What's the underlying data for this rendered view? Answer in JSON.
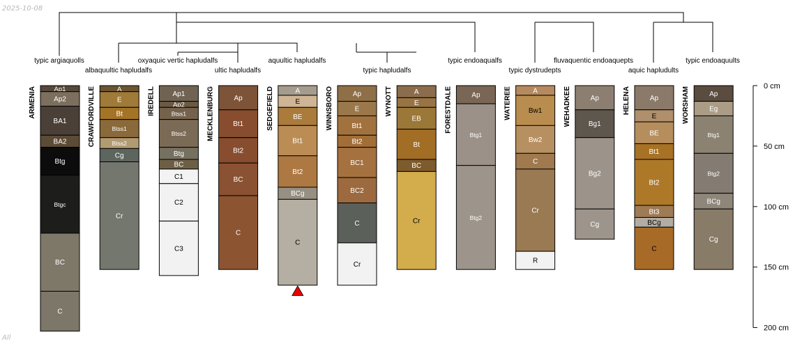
{
  "corner_labels": {
    "date": "2025-10-08",
    "group": "All"
  },
  "depth_axis": {
    "max_depth_cm": 200,
    "ticks": [
      {
        "depth": 0,
        "label": "0 cm"
      },
      {
        "depth": 50,
        "label": "50 cm"
      },
      {
        "depth": 100,
        "label": "100 cm"
      },
      {
        "depth": 150,
        "label": "150 cm"
      },
      {
        "depth": 200,
        "label": "200 cm"
      }
    ]
  },
  "tree_labels": [
    "typic argiaquolls",
    "albaquultic hapludalfs",
    "oxyaquic vertic hapludalfs",
    "ultic hapludalfs",
    "aquultic hapludalfs",
    "typic hapludalfs",
    "typic endoaqualfs",
    "typic dystrudepts",
    "fluvaquentic endoaquepts",
    "aquic hapludults",
    "typic endoaquults"
  ],
  "profiles": [
    {
      "name": "ARMENIA",
      "horizons": [
        {
          "n": "Ap1",
          "t": 0,
          "b": 5,
          "c": "#56483a",
          "tc": "#ffffff"
        },
        {
          "n": "Ap2",
          "t": 5,
          "b": 17,
          "c": "#7c6f5e",
          "tc": "#ffffff"
        },
        {
          "n": "BA1",
          "t": 17,
          "b": 41,
          "c": "#4a4038",
          "tc": "#ffffff"
        },
        {
          "n": "BA2",
          "t": 41,
          "b": 51,
          "c": "#5c4b35",
          "tc": "#ffffff"
        },
        {
          "n": "Btg",
          "t": 51,
          "b": 74,
          "c": "#0c0c0c",
          "tc": "#ffffff"
        },
        {
          "n": "Btgc",
          "t": 74,
          "b": 122,
          "c": "#1d1e1c",
          "tc": "#ffffff"
        },
        {
          "n": "BC",
          "t": 122,
          "b": 170,
          "c": "#7e7869",
          "tc": "#ffffff"
        },
        {
          "n": "C",
          "t": 170,
          "b": 203,
          "c": "#7c7768",
          "tc": "#ffffff"
        }
      ]
    },
    {
      "name": "CRAWFORDVILLE",
      "horizons": [
        {
          "n": "A",
          "t": 0,
          "b": 5,
          "c": "#6b5532",
          "tc": "#ffffff"
        },
        {
          "n": "E",
          "t": 5,
          "b": 18,
          "c": "#9f7a38",
          "tc": "#ffffff"
        },
        {
          "n": "Bt",
          "t": 18,
          "b": 28,
          "c": "#a47426",
          "tc": "#ffffff"
        },
        {
          "n": "Btss1",
          "t": 28,
          "b": 43,
          "c": "#8a6a3a",
          "tc": "#ffffff"
        },
        {
          "n": "Btss2",
          "t": 43,
          "b": 52,
          "c": "#b29a72",
          "tc": "#ffffff"
        },
        {
          "n": "Cg",
          "t": 52,
          "b": 63,
          "c": "#5d655f",
          "tc": "#ffffff"
        },
        {
          "n": "Cr",
          "t": 63,
          "b": 152,
          "c": "#74776e",
          "tc": "#ffffff"
        }
      ]
    },
    {
      "name": "IREDELL",
      "horizons": [
        {
          "n": "Ap1",
          "t": 0,
          "b": 13,
          "c": "#716353",
          "tc": "#ffffff"
        },
        {
          "n": "Ap2",
          "t": 13,
          "b": 18,
          "c": "#6b5a44",
          "tc": "#ffffff"
        },
        {
          "n": "Btss1",
          "t": 18,
          "b": 28,
          "c": "#75624d",
          "tc": "#ffffff"
        },
        {
          "n": "Btss2",
          "t": 28,
          "b": 51,
          "c": "#7b6a55",
          "tc": "#ffffff"
        },
        {
          "n": "Btg",
          "t": 51,
          "b": 61,
          "c": "#75705f",
          "tc": "#ffffff"
        },
        {
          "n": "BC",
          "t": 61,
          "b": 69,
          "c": "#6d5f46",
          "tc": "#ffffff"
        },
        {
          "n": "C1",
          "t": 69,
          "b": 81,
          "c": "#f3f3f3",
          "tc": "#000000"
        },
        {
          "n": "C2",
          "t": 81,
          "b": 112,
          "c": "#f2f2f2",
          "tc": "#000000"
        },
        {
          "n": "C3",
          "t": 112,
          "b": 157,
          "c": "#f2f2f2",
          "tc": "#000000"
        }
      ]
    },
    {
      "name": "MECKLENBURG",
      "horizons": [
        {
          "n": "Ap",
          "t": 0,
          "b": 20,
          "c": "#7d5438",
          "tc": "#ffffff"
        },
        {
          "n": "Bt1",
          "t": 20,
          "b": 43,
          "c": "#874d2e",
          "tc": "#ffffff"
        },
        {
          "n": "Bt2",
          "t": 43,
          "b": 64,
          "c": "#874d2e",
          "tc": "#ffffff"
        },
        {
          "n": "BC",
          "t": 64,
          "b": 91,
          "c": "#8a5132",
          "tc": "#ffffff"
        },
        {
          "n": "C",
          "t": 91,
          "b": 152,
          "c": "#8d5432",
          "tc": "#ffffff"
        }
      ]
    },
    {
      "name": "SEDGEFIELD",
      "bottom_marker": true,
      "horizons": [
        {
          "n": "A",
          "t": 0,
          "b": 8,
          "c": "#a69c8d",
          "tc": "#ffffff"
        },
        {
          "n": "E",
          "t": 8,
          "b": 18,
          "c": "#cfb495",
          "tc": "#000000"
        },
        {
          "n": "BE",
          "t": 18,
          "b": 33,
          "c": "#aa7b3b",
          "tc": "#ffffff"
        },
        {
          "n": "Bt1",
          "t": 33,
          "b": 58,
          "c": "#bb8d55",
          "tc": "#ffffff"
        },
        {
          "n": "Bt2",
          "t": 58,
          "b": 84,
          "c": "#ad7841",
          "tc": "#ffffff"
        },
        {
          "n": "BCg",
          "t": 84,
          "b": 94,
          "c": "#968f82",
          "tc": "#ffffff"
        },
        {
          "n": "C",
          "t": 94,
          "b": 165,
          "c": "#b5aea2",
          "tc": "#000000"
        }
      ]
    },
    {
      "name": "WINNSBORO",
      "horizons": [
        {
          "n": "Ap",
          "t": 0,
          "b": 13,
          "c": "#8f6f47",
          "tc": "#ffffff"
        },
        {
          "n": "E",
          "t": 13,
          "b": 25,
          "c": "#9b784b",
          "tc": "#ffffff"
        },
        {
          "n": "Bt1",
          "t": 25,
          "b": 41,
          "c": "#a2723e",
          "tc": "#ffffff"
        },
        {
          "n": "Bt2",
          "t": 41,
          "b": 51,
          "c": "#a26e38",
          "tc": "#ffffff"
        },
        {
          "n": "BC1",
          "t": 51,
          "b": 76,
          "c": "#a5713f",
          "tc": "#ffffff"
        },
        {
          "n": "BC2",
          "t": 76,
          "b": 97,
          "c": "#9c6a3e",
          "tc": "#ffffff"
        },
        {
          "n": "C",
          "t": 97,
          "b": 130,
          "c": "#5b605a",
          "tc": "#ffffff"
        },
        {
          "n": "Cr",
          "t": 130,
          "b": 165,
          "c": "#f2f2f2",
          "tc": "#000000"
        }
      ]
    },
    {
      "name": "WYNOTT",
      "horizons": [
        {
          "n": "A",
          "t": 0,
          "b": 10,
          "c": "#8b6c4c",
          "tc": "#ffffff"
        },
        {
          "n": "E",
          "t": 10,
          "b": 18,
          "c": "#987445",
          "tc": "#ffffff"
        },
        {
          "n": "EB",
          "t": 18,
          "b": 36,
          "c": "#9b7738",
          "tc": "#ffffff"
        },
        {
          "n": "Bt",
          "t": 36,
          "b": 61,
          "c": "#a26d24",
          "tc": "#ffffff"
        },
        {
          "n": "BC",
          "t": 61,
          "b": 71,
          "c": "#7d5b2c",
          "tc": "#ffffff"
        },
        {
          "n": "Cr",
          "t": 71,
          "b": 152,
          "c": "#d3ac4c",
          "tc": "#000000"
        }
      ]
    },
    {
      "name": "FORESTDALE",
      "horizons": [
        {
          "n": "Ap",
          "t": 0,
          "b": 15,
          "c": "#7a6654",
          "tc": "#ffffff"
        },
        {
          "n": "Btg1",
          "t": 15,
          "b": 66,
          "c": "#9b9188",
          "tc": "#ffffff"
        },
        {
          "n": "Btg2",
          "t": 66,
          "b": 152,
          "c": "#9d958c",
          "tc": "#ffffff"
        }
      ]
    },
    {
      "name": "WATEREE",
      "horizons": [
        {
          "n": "A",
          "t": 0,
          "b": 8,
          "c": "#b48a5e",
          "tc": "#ffffff"
        },
        {
          "n": "Bw1",
          "t": 8,
          "b": 33,
          "c": "#b98d50",
          "tc": "#000000"
        },
        {
          "n": "Bw2",
          "t": 33,
          "b": 56,
          "c": "#b79061",
          "tc": "#ffffff"
        },
        {
          "n": "C",
          "t": 56,
          "b": 69,
          "c": "#a0794f",
          "tc": "#ffffff"
        },
        {
          "n": "Cr",
          "t": 69,
          "b": 137,
          "c": "#9a7a53",
          "tc": "#ffffff"
        },
        {
          "n": "R",
          "t": 137,
          "b": 152,
          "c": "#f2f2f2",
          "tc": "#000000"
        }
      ]
    },
    {
      "name": "WEHADKEE",
      "horizons": [
        {
          "n": "Ap",
          "t": 0,
          "b": 20,
          "c": "#8c7f71",
          "tc": "#ffffff"
        },
        {
          "n": "Bg1",
          "t": 20,
          "b": 43,
          "c": "#5d574d",
          "tc": "#ffffff"
        },
        {
          "n": "Bg2",
          "t": 43,
          "b": 102,
          "c": "#9c948a",
          "tc": "#ffffff"
        },
        {
          "n": "Cg",
          "t": 102,
          "b": 127,
          "c": "#9d958b",
          "tc": "#ffffff"
        }
      ]
    },
    {
      "name": "HELENA",
      "horizons": [
        {
          "n": "Ap",
          "t": 0,
          "b": 20,
          "c": "#8b7a69",
          "tc": "#ffffff"
        },
        {
          "n": "E",
          "t": 20,
          "b": 30,
          "c": "#b08f6c",
          "tc": "#000000"
        },
        {
          "n": "BE",
          "t": 30,
          "b": 48,
          "c": "#b68d5c",
          "tc": "#ffffff"
        },
        {
          "n": "Bt1",
          "t": 48,
          "b": 61,
          "c": "#a77225",
          "tc": "#ffffff"
        },
        {
          "n": "Bt2",
          "t": 61,
          "b": 99,
          "c": "#ad7929",
          "tc": "#ffffff"
        },
        {
          "n": "Bt3",
          "t": 99,
          "b": 109,
          "c": "#9e7a55",
          "tc": "#ffffff"
        },
        {
          "n": "BCg",
          "t": 109,
          "b": 117,
          "c": "#b2aca2",
          "tc": "#000000"
        },
        {
          "n": "C",
          "t": 117,
          "b": 152,
          "c": "#a76b27",
          "tc": "#000000"
        }
      ]
    },
    {
      "name": "WORSHAM",
      "horizons": [
        {
          "n": "Ap",
          "t": 0,
          "b": 13,
          "c": "#5a4c3e",
          "tc": "#ffffff"
        },
        {
          "n": "Eg",
          "t": 13,
          "b": 25,
          "c": "#ab9c86",
          "tc": "#ffffff"
        },
        {
          "n": "Btg1",
          "t": 25,
          "b": 56,
          "c": "#8b8272",
          "tc": "#ffffff"
        },
        {
          "n": "Btg2",
          "t": 56,
          "b": 89,
          "c": "#847b72",
          "tc": "#ffffff"
        },
        {
          "n": "BCg",
          "t": 89,
          "b": 102,
          "c": "#8f867a",
          "tc": "#ffffff"
        },
        {
          "n": "Cg",
          "t": 102,
          "b": 152,
          "c": "#887c68",
          "tc": "#ffffff"
        }
      ]
    }
  ]
}
